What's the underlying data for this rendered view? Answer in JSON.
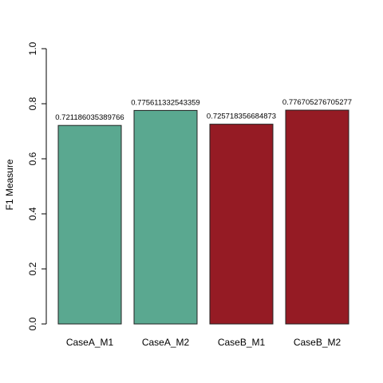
{
  "chart_data": {
    "type": "bar",
    "title": "",
    "xlabel": "",
    "ylabel": "F1 Measure",
    "ylim": [
      0,
      1
    ],
    "yticks": [
      0.0,
      0.2,
      0.4,
      0.6,
      0.8,
      1.0
    ],
    "ytick_labels": [
      "0.0",
      "0.2",
      "0.4",
      "0.6",
      "0.8",
      "1.0"
    ],
    "categories": [
      "CaseA_M1",
      "CaseA_M2",
      "CaseB_M1",
      "CaseB_M2"
    ],
    "values": [
      0.721186035389766,
      0.775611332543359,
      0.725718356684873,
      0.776705276705277
    ],
    "value_labels": [
      "0.721186035389766",
      "0.775611332543359",
      "0.725718356684873",
      "0.776705276705277"
    ],
    "colors": [
      "#5aa890",
      "#5aa890",
      "#951b24",
      "#951b24"
    ],
    "grid": false,
    "legend": "none"
  }
}
